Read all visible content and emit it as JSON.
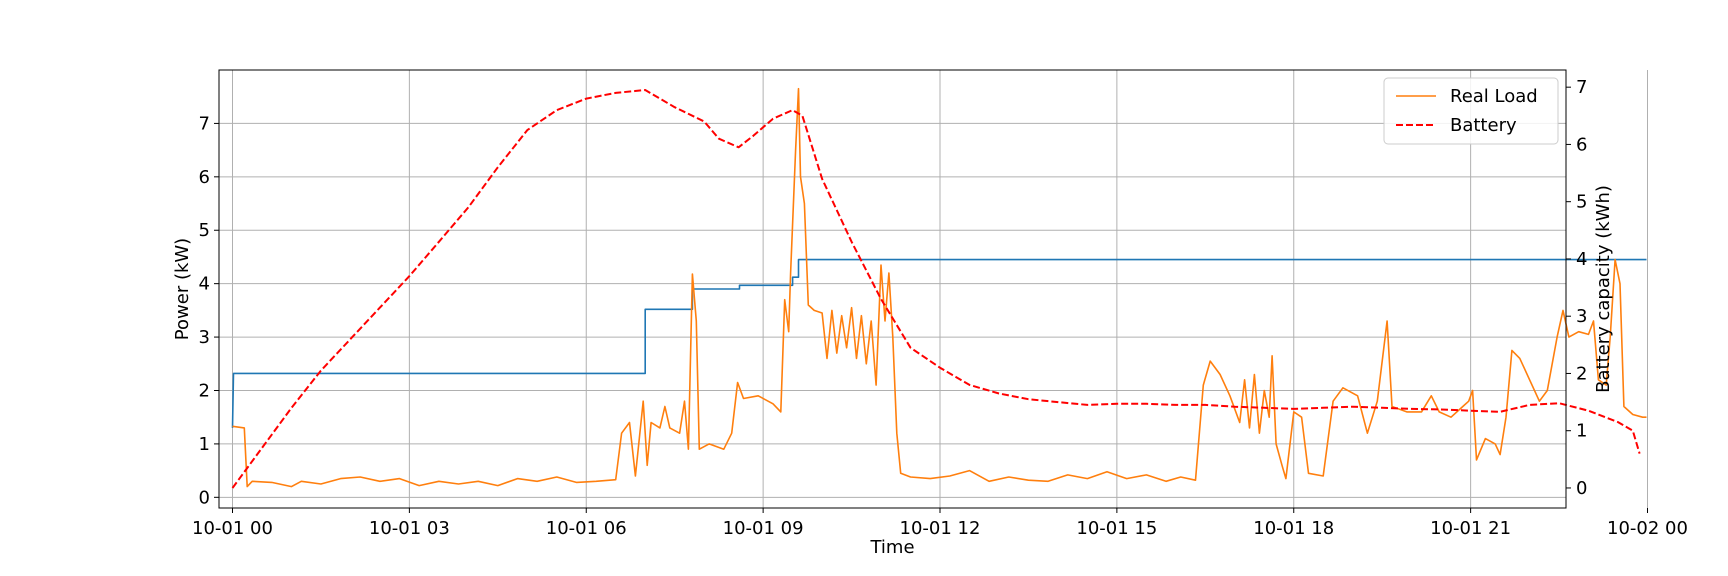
{
  "chart_data": {
    "type": "line",
    "xlabel": "Time",
    "ylabel": "Power (kW)",
    "y2label": "Battery capacity (kWh)",
    "xlim": [
      "2023-10-01 00:00",
      "2023-10-02 00:00"
    ],
    "x_tick_labels": [
      "10-01 00",
      "10-01 03",
      "10-01 06",
      "10-01 09",
      "10-01 12",
      "10-01 15",
      "10-01 18",
      "10-01 21",
      "10-02 00"
    ],
    "ylim": [
      -0.2,
      8.0
    ],
    "y_ticks": [
      0,
      1,
      2,
      3,
      4,
      5,
      6,
      7
    ],
    "y2lim": [
      -0.35,
      7.3
    ],
    "y2_ticks": [
      0,
      1,
      2,
      3,
      4,
      5,
      6,
      7
    ],
    "grid": true,
    "legend_position": "top-right",
    "series": [
      {
        "name": "",
        "axis": "left",
        "color": "#1f77b4",
        "style": "solid",
        "points": [
          [
            "00:00",
            1.3
          ],
          [
            "00:01",
            2.32
          ],
          [
            "07:00",
            2.32
          ],
          [
            "07:00",
            3.52
          ],
          [
            "07:48",
            3.52
          ],
          [
            "07:48",
            3.9
          ],
          [
            "08:36",
            3.9
          ],
          [
            "08:36",
            3.97
          ],
          [
            "09:30",
            3.97
          ],
          [
            "09:30",
            4.12
          ],
          [
            "09:36",
            4.12
          ],
          [
            "09:36",
            4.45
          ],
          [
            "23:59",
            4.45
          ]
        ]
      },
      {
        "name": "Real Load",
        "axis": "left",
        "color": "#ff7f0e",
        "style": "solid",
        "points": [
          [
            "00:00",
            1.33
          ],
          [
            "00:12",
            1.3
          ],
          [
            "00:15",
            0.2
          ],
          [
            "00:20",
            0.3
          ],
          [
            "00:40",
            0.28
          ],
          [
            "01:00",
            0.2
          ],
          [
            "01:10",
            0.3
          ],
          [
            "01:30",
            0.25
          ],
          [
            "01:50",
            0.35
          ],
          [
            "02:10",
            0.38
          ],
          [
            "02:30",
            0.3
          ],
          [
            "02:50",
            0.35
          ],
          [
            "03:10",
            0.22
          ],
          [
            "03:30",
            0.3
          ],
          [
            "03:50",
            0.25
          ],
          [
            "04:10",
            0.3
          ],
          [
            "04:30",
            0.22
          ],
          [
            "04:50",
            0.35
          ],
          [
            "05:10",
            0.3
          ],
          [
            "05:30",
            0.38
          ],
          [
            "05:50",
            0.28
          ],
          [
            "06:10",
            0.3
          ],
          [
            "06:30",
            0.33
          ],
          [
            "06:36",
            1.2
          ],
          [
            "06:44",
            1.4
          ],
          [
            "06:50",
            0.4
          ],
          [
            "06:58",
            1.8
          ],
          [
            "07:02",
            0.6
          ],
          [
            "07:06",
            1.4
          ],
          [
            "07:15",
            1.3
          ],
          [
            "07:20",
            1.7
          ],
          [
            "07:25",
            1.3
          ],
          [
            "07:35",
            1.2
          ],
          [
            "07:40",
            1.8
          ],
          [
            "07:44",
            0.9
          ],
          [
            "07:48",
            4.18
          ],
          [
            "07:52",
            3.3
          ],
          [
            "07:55",
            0.9
          ],
          [
            "08:05",
            1.0
          ],
          [
            "08:20",
            0.9
          ],
          [
            "08:28",
            1.2
          ],
          [
            "08:34",
            2.15
          ],
          [
            "08:40",
            1.85
          ],
          [
            "08:55",
            1.9
          ],
          [
            "09:10",
            1.75
          ],
          [
            "09:18",
            1.6
          ],
          [
            "09:22",
            3.7
          ],
          [
            "09:26",
            3.1
          ],
          [
            "09:28",
            4.2
          ],
          [
            "09:33",
            6.5
          ],
          [
            "09:36",
            7.65
          ],
          [
            "09:38",
            6.0
          ],
          [
            "09:42",
            5.5
          ],
          [
            "09:46",
            3.6
          ],
          [
            "09:52",
            3.5
          ],
          [
            "10:00",
            3.45
          ],
          [
            "10:05",
            2.6
          ],
          [
            "10:10",
            3.5
          ],
          [
            "10:15",
            2.7
          ],
          [
            "10:20",
            3.4
          ],
          [
            "10:25",
            2.8
          ],
          [
            "10:30",
            3.55
          ],
          [
            "10:35",
            2.6
          ],
          [
            "10:40",
            3.4
          ],
          [
            "10:45",
            2.5
          ],
          [
            "10:50",
            3.3
          ],
          [
            "10:55",
            2.1
          ],
          [
            "11:00",
            4.35
          ],
          [
            "11:04",
            3.3
          ],
          [
            "11:08",
            4.2
          ],
          [
            "11:12",
            3.0
          ],
          [
            "11:16",
            1.2
          ],
          [
            "11:20",
            0.45
          ],
          [
            "11:30",
            0.38
          ],
          [
            "11:50",
            0.35
          ],
          [
            "12:10",
            0.4
          ],
          [
            "12:30",
            0.5
          ],
          [
            "12:50",
            0.3
          ],
          [
            "13:10",
            0.38
          ],
          [
            "13:30",
            0.32
          ],
          [
            "13:50",
            0.3
          ],
          [
            "14:10",
            0.42
          ],
          [
            "14:30",
            0.35
          ],
          [
            "14:50",
            0.48
          ],
          [
            "15:10",
            0.35
          ],
          [
            "15:30",
            0.42
          ],
          [
            "15:50",
            0.3
          ],
          [
            "16:05",
            0.38
          ],
          [
            "16:20",
            0.32
          ],
          [
            "16:28",
            2.1
          ],
          [
            "16:35",
            2.55
          ],
          [
            "16:45",
            2.3
          ],
          [
            "16:55",
            1.9
          ],
          [
            "17:05",
            1.4
          ],
          [
            "17:10",
            2.2
          ],
          [
            "17:15",
            1.3
          ],
          [
            "17:20",
            2.3
          ],
          [
            "17:25",
            1.2
          ],
          [
            "17:30",
            2.0
          ],
          [
            "17:35",
            1.5
          ],
          [
            "17:38",
            2.65
          ],
          [
            "17:42",
            1.0
          ],
          [
            "17:48",
            0.6
          ],
          [
            "17:52",
            0.35
          ],
          [
            "18:00",
            1.6
          ],
          [
            "18:08",
            1.5
          ],
          [
            "18:15",
            0.45
          ],
          [
            "18:30",
            0.4
          ],
          [
            "18:40",
            1.8
          ],
          [
            "18:50",
            2.05
          ],
          [
            "19:05",
            1.9
          ],
          [
            "19:15",
            1.2
          ],
          [
            "19:25",
            1.8
          ],
          [
            "19:35",
            3.3
          ],
          [
            "19:40",
            1.7
          ],
          [
            "19:55",
            1.6
          ],
          [
            "20:10",
            1.6
          ],
          [
            "20:20",
            1.9
          ],
          [
            "20:28",
            1.6
          ],
          [
            "20:40",
            1.5
          ],
          [
            "20:52",
            1.7
          ],
          [
            "20:58",
            1.8
          ],
          [
            "21:02",
            2.0
          ],
          [
            "21:06",
            0.7
          ],
          [
            "21:15",
            1.1
          ],
          [
            "21:25",
            1.0
          ],
          [
            "21:30",
            0.8
          ],
          [
            "21:36",
            1.5
          ],
          [
            "21:42",
            2.75
          ],
          [
            "21:50",
            2.6
          ],
          [
            "22:00",
            2.2
          ],
          [
            "22:10",
            1.8
          ],
          [
            "22:18",
            2.0
          ],
          [
            "22:28",
            3.0
          ],
          [
            "22:34",
            3.5
          ],
          [
            "22:40",
            3.0
          ],
          [
            "22:50",
            3.1
          ],
          [
            "23:00",
            3.05
          ],
          [
            "23:05",
            3.3
          ],
          [
            "23:10",
            2.2
          ],
          [
            "23:18",
            2.1
          ],
          [
            "23:22",
            3.0
          ],
          [
            "23:27",
            4.45
          ],
          [
            "23:32",
            4.0
          ],
          [
            "23:36",
            1.7
          ],
          [
            "23:45",
            1.55
          ],
          [
            "23:55",
            1.5
          ],
          [
            "23:59",
            1.5
          ]
        ]
      },
      {
        "name": "Battery",
        "axis": "right",
        "color": "#ff0000",
        "style": "dashed",
        "points": [
          [
            "00:00",
            0.0
          ],
          [
            "00:30",
            0.7
          ],
          [
            "01:00",
            1.4
          ],
          [
            "01:30",
            2.05
          ],
          [
            "02:00",
            2.6
          ],
          [
            "02:30",
            3.15
          ],
          [
            "03:00",
            3.7
          ],
          [
            "03:30",
            4.3
          ],
          [
            "04:00",
            4.9
          ],
          [
            "04:30",
            5.6
          ],
          [
            "05:00",
            6.25
          ],
          [
            "05:30",
            6.6
          ],
          [
            "06:00",
            6.8
          ],
          [
            "06:30",
            6.9
          ],
          [
            "07:00",
            6.95
          ],
          [
            "07:15",
            6.8
          ],
          [
            "07:30",
            6.65
          ],
          [
            "08:00",
            6.4
          ],
          [
            "08:15",
            6.1
          ],
          [
            "08:35",
            5.95
          ],
          [
            "08:50",
            6.15
          ],
          [
            "09:10",
            6.45
          ],
          [
            "09:30",
            6.6
          ],
          [
            "09:40",
            6.5
          ],
          [
            "10:00",
            5.4
          ],
          [
            "10:30",
            4.3
          ],
          [
            "11:00",
            3.3
          ],
          [
            "11:30",
            2.45
          ],
          [
            "12:00",
            2.1
          ],
          [
            "12:30",
            1.8
          ],
          [
            "13:00",
            1.65
          ],
          [
            "13:30",
            1.55
          ],
          [
            "14:00",
            1.5
          ],
          [
            "14:30",
            1.45
          ],
          [
            "15:00",
            1.47
          ],
          [
            "15:30",
            1.47
          ],
          [
            "16:00",
            1.45
          ],
          [
            "16:30",
            1.45
          ],
          [
            "17:00",
            1.42
          ],
          [
            "17:30",
            1.4
          ],
          [
            "18:00",
            1.38
          ],
          [
            "18:30",
            1.4
          ],
          [
            "19:00",
            1.42
          ],
          [
            "19:30",
            1.4
          ],
          [
            "20:00",
            1.38
          ],
          [
            "20:30",
            1.37
          ],
          [
            "21:00",
            1.35
          ],
          [
            "21:30",
            1.33
          ],
          [
            "22:00",
            1.45
          ],
          [
            "22:30",
            1.48
          ],
          [
            "23:00",
            1.35
          ],
          [
            "23:30",
            1.15
          ],
          [
            "23:45",
            1.0
          ],
          [
            "23:52",
            0.6
          ]
        ]
      }
    ]
  }
}
